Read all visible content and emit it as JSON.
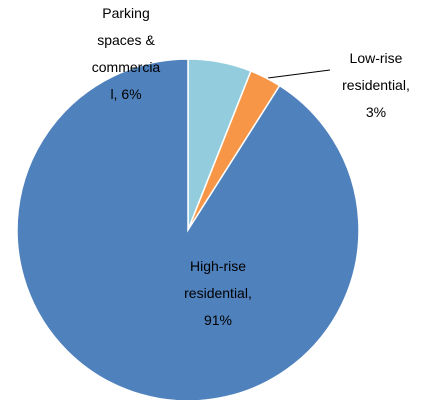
{
  "chart_data": {
    "type": "pie",
    "values": [
      6,
      3,
      91
    ],
    "value_labels": [
      "Parking spaces & commercial, 6%",
      "Low-rise residential, 3%",
      "High-rise residential, 91%"
    ],
    "colors": [
      "#93cddd",
      "#f79646",
      "#4f81bd"
    ]
  }
}
